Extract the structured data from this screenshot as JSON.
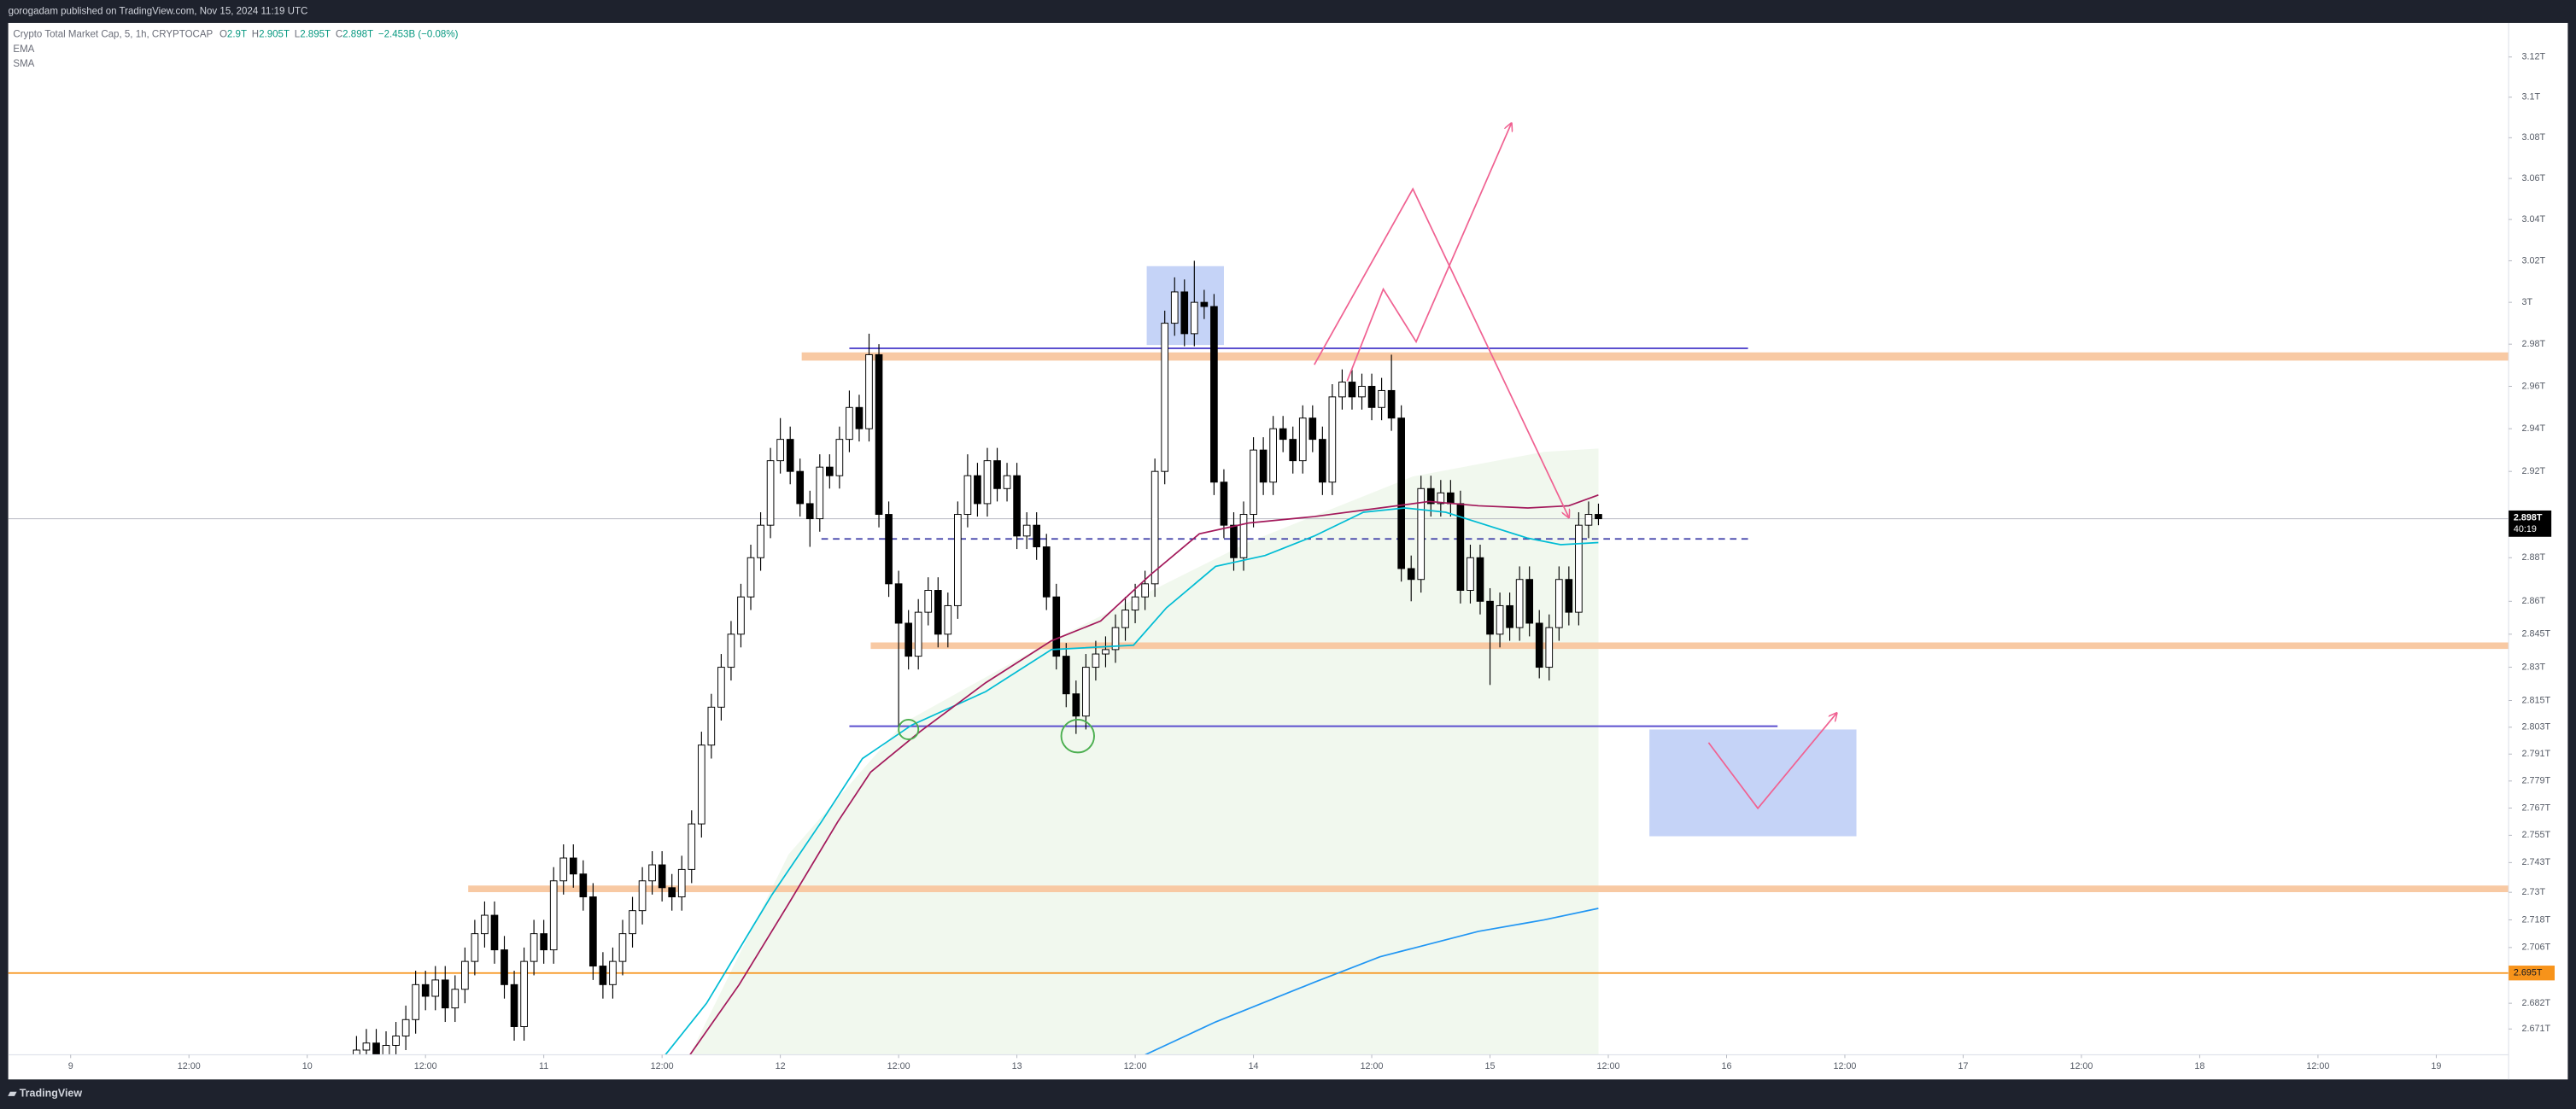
{
  "header": {
    "text": "gorogadam published on TradingView.com, Nov 15, 2024 11:19 UTC"
  },
  "footer": {
    "brand": "TradingView"
  },
  "chart_data": {
    "type": "candlestick",
    "title": "Crypto Total Market Cap, 5, 1h, CRYPTOCAP",
    "ohlc_legend": [
      {
        "label": "O",
        "value": "2.9T"
      },
      {
        "label": "H",
        "value": "2.905T"
      },
      {
        "label": "L",
        "value": "2.895T"
      },
      {
        "label": "C",
        "value": "2.898T"
      }
    ],
    "change": "−2.453B (−0.08%)",
    "up_color": "#ffffff",
    "down_color": "#000000",
    "x": [
      10.2083,
      10.25,
      10.2917,
      10.3333,
      10.375,
      10.4167,
      10.4583,
      10.5,
      10.5417,
      10.5833,
      10.625,
      10.6667,
      10.7083,
      10.75,
      10.7917,
      10.8333,
      10.875,
      10.9167,
      10.9583,
      11,
      11.0417,
      11.0833,
      11.125,
      11.1667,
      11.2083,
      11.25,
      11.2917,
      11.3333,
      11.375,
      11.4167,
      11.4583,
      11.5,
      11.5417,
      11.5833,
      11.625,
      11.6667,
      11.7083,
      11.75,
      11.7917,
      11.8333,
      11.875,
      11.9167,
      11.9583,
      12,
      12.0417,
      12.0833,
      12.125,
      12.1667,
      12.2083,
      12.25,
      12.2917,
      12.3333,
      12.375,
      12.4167,
      12.4583,
      12.5,
      12.5417,
      12.5833,
      12.625,
      12.6667,
      12.7083,
      12.75,
      12.7917,
      12.8333,
      12.875,
      12.9167,
      12.9583,
      13,
      13.0417,
      13.0833,
      13.125,
      13.1667,
      13.2083,
      13.25,
      13.2917,
      13.3333,
      13.375,
      13.4167,
      13.4583,
      13.5,
      13.5417,
      13.5833,
      13.625,
      13.6667,
      13.7083,
      13.75,
      13.7917,
      13.8333,
      13.875,
      13.9167,
      13.9583,
      14,
      14.0417,
      14.0833,
      14.125,
      14.1667,
      14.2083,
      14.25,
      14.2917,
      14.3333,
      14.375,
      14.4167,
      14.4583,
      14.5,
      14.5417,
      14.5833,
      14.625,
      14.6667,
      14.7083,
      14.75,
      14.7917,
      14.8333,
      14.875,
      14.9167,
      14.9583,
      15,
      15.0417,
      15.0833,
      15.125,
      15.1667,
      15.2083,
      15.25,
      15.2917,
      15.3333,
      15.375,
      15.4167,
      15.4583
    ],
    "open": [
      2.658,
      2.662,
      2.665,
      2.658,
      2.664,
      2.668,
      2.675,
      2.69,
      2.685,
      2.692,
      2.68,
      2.688,
      2.7,
      2.712,
      2.72,
      2.705,
      2.69,
      2.672,
      2.7,
      2.712,
      2.705,
      2.735,
      2.745,
      2.738,
      2.728,
      2.698,
      2.69,
      2.7,
      2.712,
      2.722,
      2.735,
      2.742,
      2.732,
      2.728,
      2.74,
      2.76,
      2.795,
      2.812,
      2.83,
      2.845,
      2.862,
      2.88,
      2.895,
      2.925,
      2.935,
      2.92,
      2.905,
      2.898,
      2.922,
      2.918,
      2.935,
      2.95,
      2.94,
      2.975,
      2.9,
      2.868,
      2.85,
      2.835,
      2.855,
      2.865,
      2.845,
      2.858,
      2.9,
      2.918,
      2.905,
      2.925,
      2.912,
      2.918,
      2.89,
      2.895,
      2.885,
      2.862,
      2.835,
      2.818,
      2.808,
      2.83,
      2.836,
      2.838,
      2.848,
      2.856,
      2.862,
      2.868,
      2.92,
      2.99,
      3.005,
      2.985,
      3.0,
      2.998,
      2.915,
      2.895,
      2.88,
      2.9,
      2.93,
      2.915,
      2.94,
      2.935,
      2.925,
      2.945,
      2.935,
      2.915,
      2.955,
      2.962,
      2.955,
      2.96,
      2.95,
      2.958,
      2.945,
      2.875,
      2.87,
      2.912,
      2.905,
      2.91,
      2.905,
      2.865,
      2.88,
      2.86,
      2.845,
      2.858,
      2.848,
      2.87,
      2.85,
      2.83,
      2.848,
      2.87,
      2.855,
      2.895,
      2.9
    ],
    "high": [
      2.668,
      2.671,
      2.671,
      2.67,
      2.674,
      2.681,
      2.696,
      2.696,
      2.698,
      2.698,
      2.694,
      2.706,
      2.718,
      2.726,
      2.726,
      2.711,
      2.696,
      2.706,
      2.718,
      2.718,
      2.741,
      2.751,
      2.751,
      2.744,
      2.734,
      2.704,
      2.706,
      2.718,
      2.728,
      2.741,
      2.748,
      2.748,
      2.738,
      2.746,
      2.766,
      2.801,
      2.818,
      2.836,
      2.851,
      2.868,
      2.886,
      2.901,
      2.931,
      2.945,
      2.941,
      2.926,
      2.911,
      2.928,
      2.928,
      2.941,
      2.958,
      2.956,
      2.985,
      2.98,
      2.906,
      2.874,
      2.856,
      2.861,
      2.871,
      2.871,
      2.864,
      2.906,
      2.928,
      2.924,
      2.931,
      2.931,
      2.924,
      2.924,
      2.901,
      2.901,
      2.891,
      2.868,
      2.841,
      2.824,
      2.836,
      2.842,
      2.844,
      2.854,
      2.862,
      2.868,
      2.874,
      2.926,
      2.996,
      3.012,
      3.011,
      3.02,
      3.006,
      3.004,
      2.921,
      2.901,
      2.906,
      2.936,
      2.936,
      2.946,
      2.946,
      2.941,
      2.951,
      2.951,
      2.941,
      2.961,
      2.968,
      2.968,
      2.966,
      2.966,
      2.964,
      2.975,
      2.951,
      2.881,
      2.918,
      2.918,
      2.916,
      2.916,
      2.911,
      2.886,
      2.886,
      2.866,
      2.864,
      2.864,
      2.876,
      2.876,
      2.856,
      2.854,
      2.876,
      2.876,
      2.901,
      2.906,
      2.905
    ],
    "low": [
      2.652,
      2.656,
      2.652,
      2.652,
      2.658,
      2.662,
      2.669,
      2.679,
      2.679,
      2.674,
      2.674,
      2.682,
      2.694,
      2.706,
      2.699,
      2.684,
      2.666,
      2.666,
      2.694,
      2.699,
      2.699,
      2.729,
      2.732,
      2.722,
      2.692,
      2.684,
      2.684,
      2.694,
      2.706,
      2.716,
      2.729,
      2.726,
      2.722,
      2.722,
      2.734,
      2.754,
      2.789,
      2.806,
      2.824,
      2.839,
      2.856,
      2.874,
      2.889,
      2.919,
      2.914,
      2.899,
      2.885,
      2.892,
      2.912,
      2.912,
      2.929,
      2.934,
      2.934,
      2.894,
      2.862,
      2.803,
      2.829,
      2.829,
      2.849,
      2.839,
      2.839,
      2.852,
      2.894,
      2.899,
      2.899,
      2.906,
      2.906,
      2.884,
      2.884,
      2.879,
      2.856,
      2.829,
      2.812,
      2.8,
      2.802,
      2.824,
      2.83,
      2.832,
      2.842,
      2.85,
      2.856,
      2.862,
      2.914,
      2.984,
      2.979,
      2.979,
      2.992,
      2.909,
      2.889,
      2.874,
      2.874,
      2.894,
      2.909,
      2.909,
      2.929,
      2.919,
      2.919,
      2.929,
      2.909,
      2.909,
      2.949,
      2.949,
      2.949,
      2.944,
      2.944,
      2.939,
      2.869,
      2.86,
      2.864,
      2.899,
      2.899,
      2.899,
      2.859,
      2.859,
      2.854,
      2.822,
      2.839,
      2.842,
      2.842,
      2.844,
      2.825,
      2.824,
      2.842,
      2.849,
      2.849,
      2.889,
      2.895
    ],
    "close": [
      2.662,
      2.665,
      2.658,
      2.664,
      2.668,
      2.675,
      2.69,
      2.685,
      2.692,
      2.68,
      2.688,
      2.7,
      2.712,
      2.72,
      2.705,
      2.69,
      2.672,
      2.7,
      2.712,
      2.705,
      2.735,
      2.745,
      2.738,
      2.728,
      2.698,
      2.69,
      2.7,
      2.712,
      2.722,
      2.735,
      2.742,
      2.732,
      2.728,
      2.74,
      2.76,
      2.795,
      2.812,
      2.83,
      2.845,
      2.862,
      2.88,
      2.895,
      2.925,
      2.935,
      2.92,
      2.905,
      2.898,
      2.922,
      2.918,
      2.935,
      2.95,
      2.94,
      2.975,
      2.9,
      2.868,
      2.85,
      2.835,
      2.855,
      2.865,
      2.845,
      2.858,
      2.9,
      2.918,
      2.905,
      2.925,
      2.912,
      2.918,
      2.89,
      2.895,
      2.885,
      2.862,
      2.835,
      2.818,
      2.808,
      2.83,
      2.836,
      2.838,
      2.848,
      2.856,
      2.862,
      2.868,
      2.92,
      2.99,
      3.005,
      2.985,
      3.0,
      2.998,
      2.915,
      2.895,
      2.88,
      2.9,
      2.93,
      2.915,
      2.94,
      2.935,
      2.925,
      2.945,
      2.935,
      2.915,
      2.955,
      2.962,
      2.955,
      2.96,
      2.95,
      2.958,
      2.945,
      2.875,
      2.87,
      2.912,
      2.905,
      2.91,
      2.905,
      2.865,
      2.88,
      2.86,
      2.845,
      2.858,
      2.848,
      2.87,
      2.85,
      2.83,
      2.848,
      2.87,
      2.855,
      2.895,
      2.9,
      2.898
    ],
    "overlays": [
      {
        "name": "EMA",
        "color": "#00bcd4",
        "x": [
          11.514,
          11.688,
          11.965,
          12.174,
          12.347,
          12.556,
          12.868,
          13.146,
          13.493,
          13.632,
          13.84,
          14.049,
          14.257,
          14.465,
          14.639,
          14.813,
          14.986,
          15.16,
          15.299,
          15.458
        ],
        "values": [
          2.66,
          2.682,
          2.729,
          2.761,
          2.789,
          2.804,
          2.819,
          2.838,
          2.84,
          2.857,
          2.876,
          2.881,
          2.89,
          2.901,
          2.903,
          2.901,
          2.895,
          2.889,
          2.886,
          2.887
        ]
      },
      {
        "name": "SMA",
        "color": "#a3195b",
        "x": [
          11.618,
          11.826,
          12.035,
          12.243,
          12.382,
          12.59,
          12.868,
          13.146,
          13.354,
          13.563,
          13.771,
          13.979,
          14.257,
          14.535,
          14.743,
          14.951,
          15.16,
          15.333,
          15.458
        ],
        "values": [
          2.66,
          2.69,
          2.725,
          2.761,
          2.783,
          2.801,
          2.823,
          2.842,
          2.851,
          2.872,
          2.891,
          2.896,
          2.899,
          2.903,
          2.906,
          2.904,
          2.903,
          2.904,
          2.909
        ]
      },
      {
        "color": "#2196f3",
        "x": [
          13.542,
          13.84,
          14.257,
          14.535,
          14.951,
          15.229,
          15.458
        ],
        "values": [
          2.66,
          2.674,
          2.691,
          2.702,
          2.713,
          2.718,
          2.723
        ]
      }
    ],
    "xlim": [
      8.736,
      19.306
    ],
    "xticks": [
      9,
      {
        "value": 9.5,
        "label": "12:00"
      },
      10,
      {
        "value": 10.5,
        "label": "12:00"
      },
      11,
      {
        "value": 11.5,
        "label": "12:00"
      },
      12,
      {
        "value": 12.5,
        "label": "12:00"
      },
      13,
      {
        "value": 13.5,
        "label": "12:00"
      },
      14,
      {
        "value": 14.5,
        "label": "12:00"
      },
      15,
      {
        "value": 15.5,
        "label": "12:00"
      },
      16,
      {
        "value": 16.5,
        "label": "12:00"
      },
      17,
      {
        "value": 17.5,
        "label": "12:00"
      },
      18,
      {
        "value": 18.5,
        "label": "12:00"
      },
      19
    ],
    "ylim": [
      2.66,
      3.137
    ],
    "log": true,
    "yticks": [
      {
        "value": 3.12,
        "label": "3.12T"
      },
      {
        "value": 3.1,
        "label": "3.1T"
      },
      {
        "value": 3.08,
        "label": "3.08T"
      },
      {
        "value": 3.06,
        "label": "3.06T"
      },
      {
        "value": 3.04,
        "label": "3.04T"
      },
      {
        "value": 3.02,
        "label": "3.02T"
      },
      {
        "value": 3,
        "label": "3T"
      },
      {
        "value": 2.98,
        "label": "2.98T"
      },
      {
        "value": 2.96,
        "label": "2.96T"
      },
      {
        "value": 2.94,
        "label": "2.94T"
      },
      {
        "value": 2.92,
        "label": "2.92T"
      },
      {
        "value": 2.88,
        "label": "2.88T"
      },
      {
        "value": 2.86,
        "label": "2.86T"
      },
      {
        "value": 2.845,
        "label": "2.845T"
      },
      {
        "value": 2.83,
        "label": "2.83T"
      },
      {
        "value": 2.815,
        "label": "2.815T"
      },
      {
        "value": 2.803,
        "label": "2.803T"
      },
      {
        "value": 2.791,
        "label": "2.791T"
      },
      {
        "value": 2.779,
        "label": "2.779T"
      },
      {
        "value": 2.767,
        "label": "2.767T"
      },
      {
        "value": 2.755,
        "label": "2.755T"
      },
      {
        "value": 2.743,
        "label": "2.743T"
      },
      {
        "value": 2.73,
        "label": "2.73T"
      },
      {
        "value": 2.718,
        "label": "2.718T"
      },
      {
        "value": 2.706,
        "label": "2.706T"
      },
      {
        "value": 2.682,
        "label": "2.682T"
      },
      {
        "value": 2.671,
        "label": "2.671T"
      }
    ],
    "last_price": {
      "value": 2.898,
      "label": "2.898T"
    },
    "countdown": "40:19",
    "level": {
      "value": 2.695,
      "label": "2.695T",
      "color": "#f7931a"
    }
  }
}
